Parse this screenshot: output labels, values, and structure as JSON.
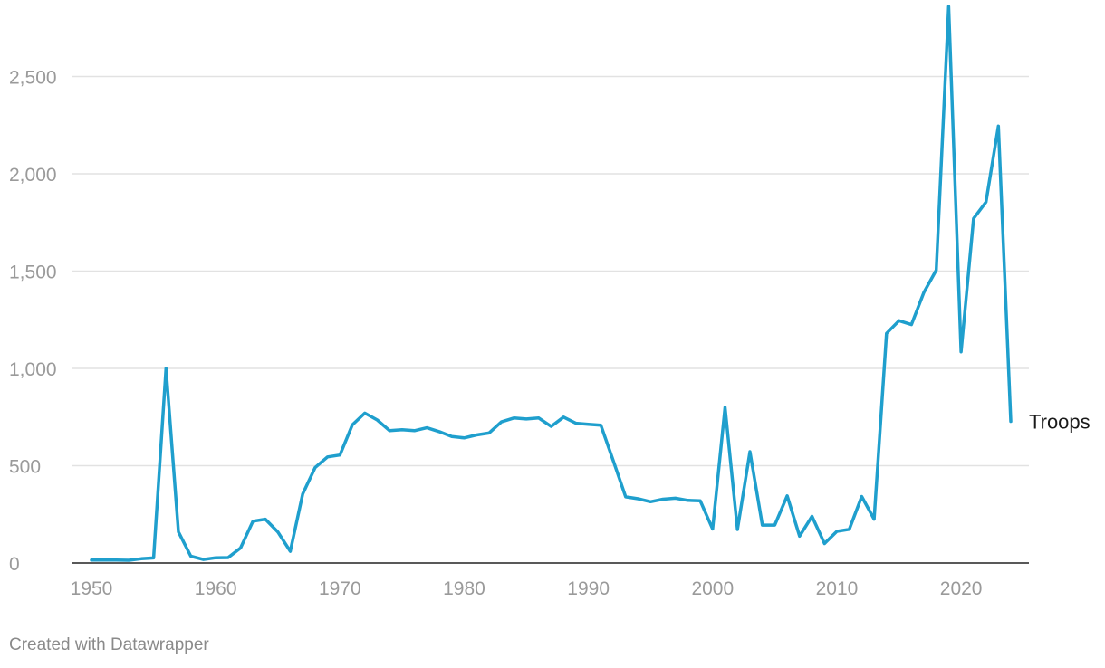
{
  "chart_data": {
    "type": "line",
    "title": "",
    "xlabel": "",
    "ylabel": "",
    "xlim": [
      1950,
      2024
    ],
    "ylim": [
      0,
      2800
    ],
    "x_ticks": [
      1950,
      1960,
      1970,
      1980,
      1990,
      2000,
      2010,
      2020
    ],
    "x_tick_labels": [
      "1950",
      "1960",
      "1970",
      "1980",
      "1990",
      "2000",
      "2010",
      "2020"
    ],
    "y_ticks": [
      0,
      500,
      1000,
      1500,
      2000,
      2500
    ],
    "y_tick_labels": [
      "0",
      "500",
      "1,000",
      "1,500",
      "2,000",
      "2,500"
    ],
    "grid": true,
    "colors": {
      "line": "#1f9fcd",
      "grid": "#e2e2e2",
      "baseline": "#222222",
      "tick_text": "#9a9a9a"
    },
    "series": [
      {
        "name": "Troops",
        "x": [
          1950,
          1951,
          1952,
          1953,
          1954,
          1955,
          1956,
          1957,
          1958,
          1959,
          1960,
          1961,
          1962,
          1963,
          1964,
          1965,
          1966,
          1967,
          1968,
          1969,
          1970,
          1971,
          1972,
          1973,
          1974,
          1975,
          1976,
          1977,
          1978,
          1979,
          1980,
          1981,
          1982,
          1983,
          1984,
          1985,
          1986,
          1987,
          1988,
          1989,
          1990,
          1991,
          1992,
          1993,
          1994,
          1995,
          1996,
          1997,
          1998,
          1999,
          2000,
          2001,
          2002,
          2003,
          2004,
          2005,
          2006,
          2007,
          2008,
          2009,
          2010,
          2011,
          2012,
          2013,
          2014,
          2015,
          2016,
          2017,
          2018,
          2019,
          2020,
          2021,
          2022,
          2023,
          2024
        ],
        "values": [
          15,
          15,
          15,
          14,
          22,
          26,
          1000,
          160,
          35,
          18,
          27,
          28,
          77,
          215,
          225,
          160,
          60,
          355,
          490,
          545,
          555,
          710,
          770,
          735,
          680,
          685,
          680,
          695,
          675,
          650,
          643,
          658,
          668,
          725,
          745,
          740,
          745,
          702,
          750,
          718,
          713,
          708,
          525,
          340,
          330,
          315,
          328,
          333,
          322,
          320,
          175,
          800,
          172,
          572,
          195,
          195,
          345,
          138,
          240,
          100,
          163,
          173,
          342,
          225,
          1180,
          1245,
          1225,
          1390,
          1505,
          2860,
          1085,
          1770,
          1855,
          2245,
          728
        ]
      }
    ]
  },
  "footer": {
    "credit": "Created with Datawrapper"
  }
}
